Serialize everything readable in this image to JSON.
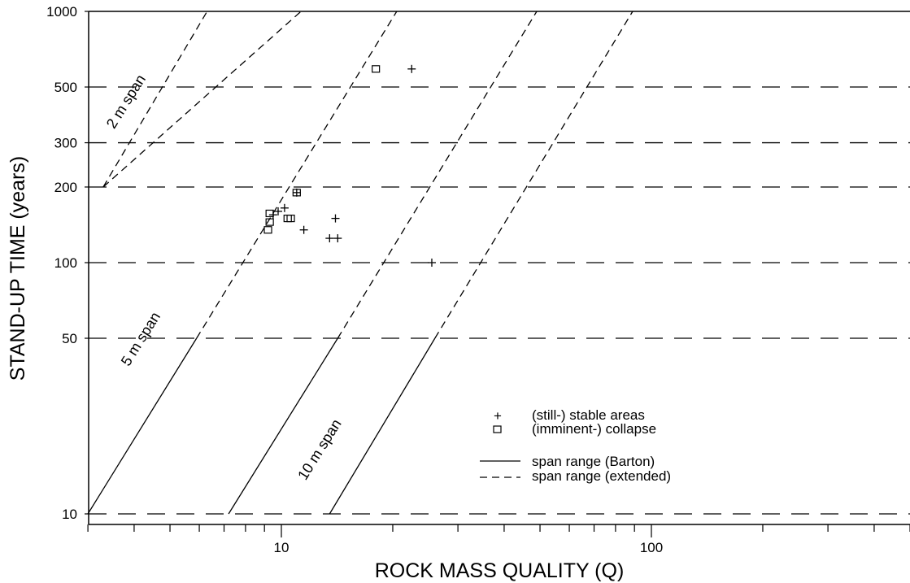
{
  "chart_data": {
    "type": "scatter",
    "xlabel": "ROCK MASS QUALITY (Q)",
    "ylabel": "STAND-UP TIME (years)",
    "x_scale": "log",
    "y_scale": "log",
    "xlim": [
      3,
      520
    ],
    "ylim": [
      9,
      1000
    ],
    "x_tick_labels": [
      {
        "value": 10,
        "label": "10"
      },
      {
        "value": 100,
        "label": "100"
      }
    ],
    "y_tick_labels": [
      {
        "value": 10,
        "label": "10"
      },
      {
        "value": 50,
        "label": "50"
      },
      {
        "value": 100,
        "label": "100"
      },
      {
        "value": 200,
        "label": "200"
      },
      {
        "value": 300,
        "label": "300"
      },
      {
        "value": 500,
        "label": "500"
      },
      {
        "value": 1000,
        "label": "1000"
      }
    ],
    "reference_lines_y": [
      10,
      50,
      100,
      200,
      300,
      500,
      1000
    ],
    "series": [
      {
        "name": "(still-) stable areas",
        "marker": "plus",
        "points": [
          {
            "x": 9.5,
            "y": 155
          },
          {
            "x": 9.8,
            "y": 160
          },
          {
            "x": 10.2,
            "y": 165
          },
          {
            "x": 11.0,
            "y": 190
          },
          {
            "x": 11.5,
            "y": 135
          },
          {
            "x": 13.5,
            "y": 125
          },
          {
            "x": 14.2,
            "y": 125
          },
          {
            "x": 14.0,
            "y": 150
          },
          {
            "x": 22.5,
            "y": 590
          },
          {
            "x": 25.5,
            "y": 100
          }
        ]
      },
      {
        "name": "(imminent-) collapse",
        "marker": "square",
        "points": [
          {
            "x": 9.3,
            "y": 157
          },
          {
            "x": 9.3,
            "y": 145
          },
          {
            "x": 9.2,
            "y": 135
          },
          {
            "x": 10.4,
            "y": 150
          },
          {
            "x": 10.6,
            "y": 150
          },
          {
            "x": 11.0,
            "y": 190
          },
          {
            "x": 18.0,
            "y": 590
          }
        ]
      }
    ],
    "span_lines": [
      {
        "label": "2 m span",
        "barton": [],
        "extended": [
          [
            3.3,
            200
          ],
          [
            6.3,
            1000
          ]
        ]
      },
      {
        "label": "",
        "barton": [],
        "extended": [
          [
            3.3,
            200
          ],
          [
            11.3,
            1000
          ]
        ]
      },
      {
        "label": "5 m span",
        "barton": [
          [
            3.0,
            10
          ],
          [
            5.9,
            50
          ]
        ],
        "extended": [
          [
            5.9,
            50
          ],
          [
            20.5,
            1000
          ]
        ]
      },
      {
        "label": "10 m span",
        "barton": [
          [
            7.2,
            10
          ],
          [
            14.2,
            50
          ]
        ],
        "extended": [
          [
            14.2,
            50
          ],
          [
            49,
            1000
          ]
        ]
      },
      {
        "label": "",
        "barton": [
          [
            13.5,
            10
          ],
          [
            26,
            50
          ]
        ],
        "extended": [
          [
            26,
            50
          ],
          [
            89,
            1000
          ]
        ]
      }
    ],
    "legend": {
      "placement": "lower-right",
      "entries": [
        {
          "symbol": "plus",
          "label": "(still-) stable areas"
        },
        {
          "symbol": "square",
          "label": "(imminent-) collapse"
        },
        {
          "symbol": "solid-line",
          "label": "span range (Barton)"
        },
        {
          "symbol": "dashed-line",
          "label": "span range (extended)"
        }
      ]
    },
    "grid": false
  }
}
